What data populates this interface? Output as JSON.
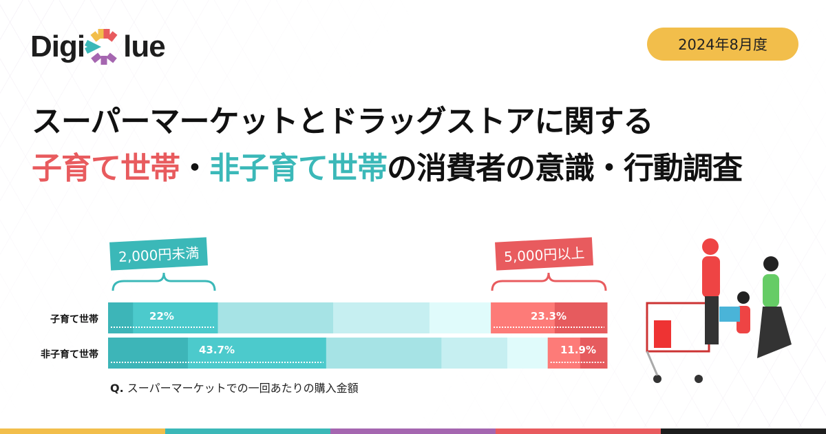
{
  "logo": {
    "text_left": "Digi",
    "text_right": "lue",
    "colors": [
      "#f2be4b",
      "#e85b5e",
      "#3bb8b8",
      "#a566b0"
    ]
  },
  "date_badge": "2024年8月度",
  "title": {
    "line1": "スーパーマーケットとドラッグストアに関する",
    "line2_red": "子育て世帯",
    "line2_sep": "・",
    "line2_teal": "非子育て世帯",
    "line2_rest": "の消費者の意識・行動調査"
  },
  "chart_data": {
    "type": "bar",
    "orientation": "horizontal-stacked-100",
    "categories": [
      "子育て世帯",
      "非子育て世帯"
    ],
    "segments": [
      [
        5.0,
        17.0,
        23.1,
        19.3,
        12.3,
        12.8,
        10.5
      ],
      [
        16.0,
        27.7,
        23.1,
        13.2,
        8.1,
        6.5,
        5.4
      ]
    ],
    "segment_colors": [
      "#3db5b8",
      "#4ccacc",
      "#a6e3e5",
      "#c6eff1",
      "#e0fbfb",
      "#fd7b78",
      "#e65b5e"
    ],
    "data_labels": [
      {
        "low": "22%",
        "high": "23.3%"
      },
      {
        "low": "43.7%",
        "high": "11.9%"
      }
    ],
    "annotations": {
      "low": "2,000円未満",
      "high": "5,000円以上"
    },
    "caption_q": "Q.",
    "caption": "スーパーマーケットでの一回あたりの購入金額"
  },
  "stripe_colors": [
    "#f2be4b",
    "#3bb8b8",
    "#a566b0",
    "#e85b5e",
    "#1d1d1d"
  ]
}
